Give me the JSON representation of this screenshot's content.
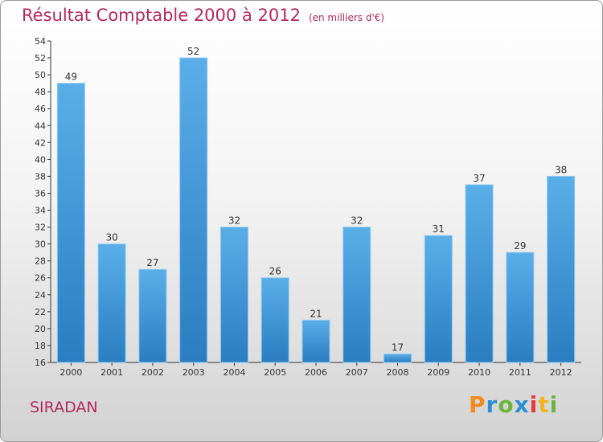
{
  "title": "Résultat Comptable 2000 à 2012",
  "unit_label": "(en milliers d'€)",
  "city": "SIRADAN",
  "logo": {
    "text": "Proxiti",
    "letters": [
      "P",
      "r",
      "o",
      "x",
      "i",
      "t",
      "i"
    ],
    "letter_colors": [
      "#f08c1e",
      "#2c8fd6",
      "#6db33f",
      "#2c8fd6",
      "#e03c3c",
      "#f0b41e",
      "#6db33f"
    ]
  },
  "colors": {
    "title": "#b5295c",
    "bar_top": "#5aaee8",
    "bar_bottom": "#2a7dc0",
    "axis": "#333333"
  },
  "chart_data": {
    "type": "bar",
    "title": "Résultat Comptable 2000 à 2012",
    "subtitle": "(en milliers d'€)",
    "xlabel": "",
    "ylabel": "",
    "categories": [
      "2000",
      "2001",
      "2002",
      "2003",
      "2004",
      "2005",
      "2006",
      "2007",
      "2008",
      "2009",
      "2010",
      "2011",
      "2012"
    ],
    "values": [
      49,
      30,
      27,
      52,
      32,
      26,
      21,
      32,
      17,
      31,
      37,
      29,
      38
    ],
    "ylim": [
      16,
      54
    ],
    "yticks": [
      16,
      18,
      20,
      22,
      24,
      26,
      28,
      30,
      32,
      34,
      36,
      38,
      40,
      42,
      44,
      46,
      48,
      50,
      52,
      54
    ],
    "grid": false,
    "legend": "none"
  }
}
